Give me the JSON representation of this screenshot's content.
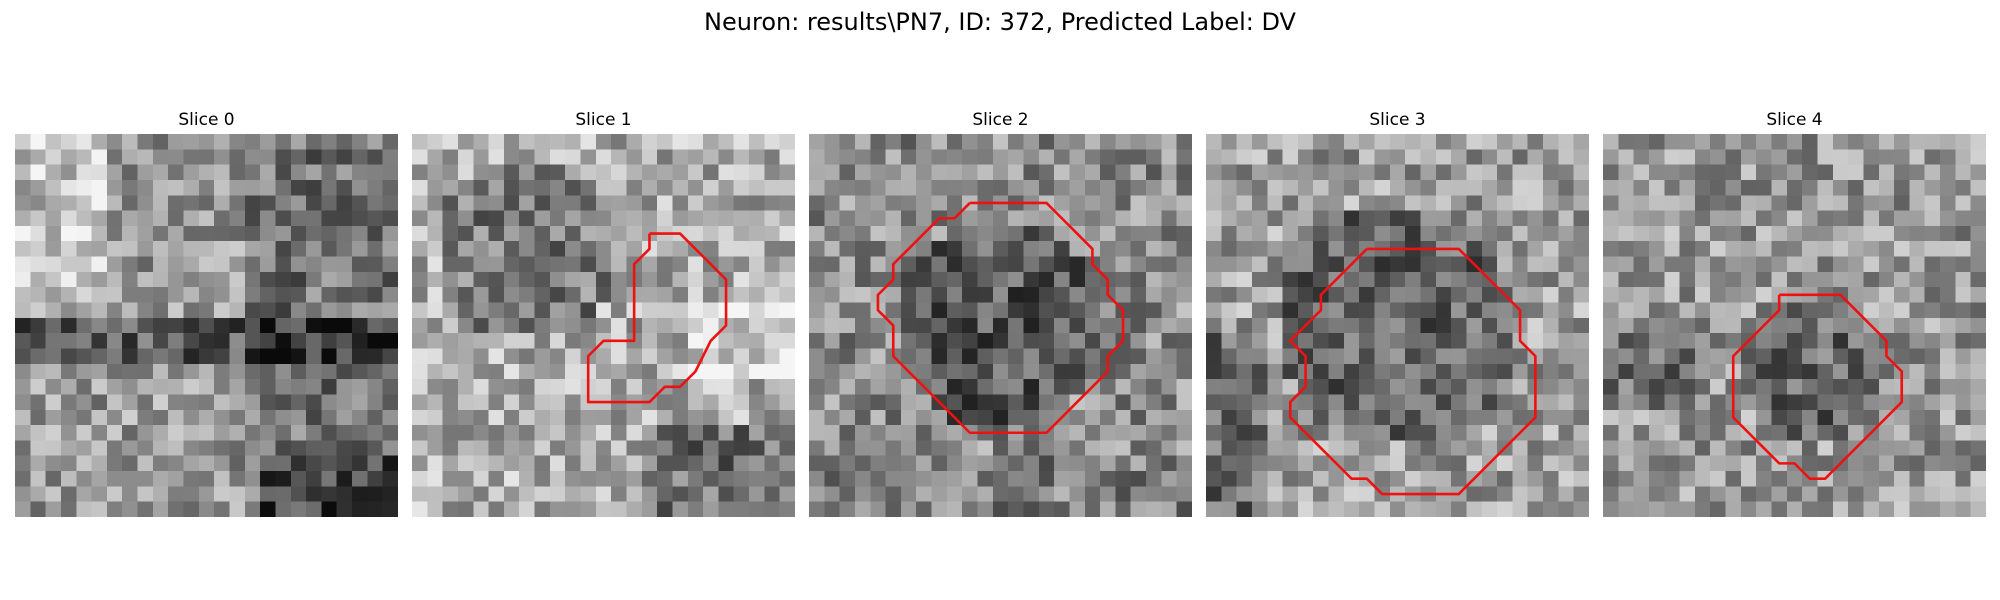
{
  "figure": {
    "title": "Neuron: results\\PN7, ID: 372, Predicted Label: DV"
  },
  "panels": [
    {
      "title": "Slice 0",
      "has_contour": false,
      "contour": []
    },
    {
      "title": "Slice 1",
      "has_contour": true,
      "contour": [
        [
          15.5,
          6.5
        ],
        [
          17.5,
          6.5
        ],
        [
          18.5,
          7.5
        ],
        [
          19.5,
          8.5
        ],
        [
          20.5,
          9.5
        ],
        [
          20.5,
          12.5
        ],
        [
          19.5,
          13.5
        ],
        [
          18.5,
          15.5
        ],
        [
          17.5,
          16.5
        ],
        [
          16.5,
          16.5
        ],
        [
          15.5,
          17.5
        ],
        [
          11.5,
          17.5
        ],
        [
          11.5,
          14.5
        ],
        [
          12.5,
          13.5
        ],
        [
          14.5,
          13.5
        ],
        [
          14.5,
          8.5
        ],
        [
          15.5,
          7.5
        ],
        [
          15.5,
          6.5
        ]
      ]
    },
    {
      "title": "Slice 2",
      "has_contour": true,
      "contour": [
        [
          10.5,
          4.5
        ],
        [
          15.5,
          4.5
        ],
        [
          16.5,
          5.5
        ],
        [
          17.5,
          6.5
        ],
        [
          18.5,
          7.5
        ],
        [
          18.5,
          8.5
        ],
        [
          19.5,
          9.5
        ],
        [
          19.5,
          10.5
        ],
        [
          20.5,
          11.5
        ],
        [
          20.5,
          13.5
        ],
        [
          19.5,
          14.5
        ],
        [
          19.5,
          15.5
        ],
        [
          18.5,
          16.5
        ],
        [
          17.5,
          17.5
        ],
        [
          16.5,
          18.5
        ],
        [
          15.5,
          19.5
        ],
        [
          10.5,
          19.5
        ],
        [
          9.5,
          18.5
        ],
        [
          8.5,
          17.5
        ],
        [
          7.5,
          16.5
        ],
        [
          6.5,
          15.5
        ],
        [
          5.5,
          14.5
        ],
        [
          5.5,
          12.5
        ],
        [
          4.5,
          11.5
        ],
        [
          4.5,
          10.5
        ],
        [
          5.5,
          9.5
        ],
        [
          5.5,
          8.5
        ],
        [
          6.5,
          7.5
        ],
        [
          7.5,
          6.5
        ],
        [
          8.5,
          5.5
        ],
        [
          9.5,
          5.5
        ],
        [
          10.5,
          4.5
        ]
      ]
    },
    {
      "title": "Slice 3",
      "has_contour": true,
      "contour": [
        [
          10.5,
          7.5
        ],
        [
          16.5,
          7.5
        ],
        [
          17.5,
          8.5
        ],
        [
          18.5,
          9.5
        ],
        [
          19.5,
          10.5
        ],
        [
          20.5,
          11.5
        ],
        [
          20.5,
          13.5
        ],
        [
          21.5,
          14.5
        ],
        [
          21.5,
          18.5
        ],
        [
          20.5,
          19.5
        ],
        [
          19.5,
          20.5
        ],
        [
          18.5,
          21.5
        ],
        [
          17.5,
          22.5
        ],
        [
          16.5,
          23.5
        ],
        [
          11.5,
          23.5
        ],
        [
          10.5,
          22.5
        ],
        [
          9.5,
          22.5
        ],
        [
          8.5,
          21.5
        ],
        [
          7.5,
          20.5
        ],
        [
          6.5,
          19.5
        ],
        [
          5.5,
          18.5
        ],
        [
          5.5,
          17.5
        ],
        [
          6.5,
          16.5
        ],
        [
          6.5,
          14.5
        ],
        [
          5.5,
          13.5
        ],
        [
          6.5,
          12.5
        ],
        [
          7.5,
          11.5
        ],
        [
          7.5,
          10.5
        ],
        [
          8.5,
          9.5
        ],
        [
          9.5,
          8.5
        ],
        [
          10.5,
          7.5
        ]
      ]
    },
    {
      "title": "Slice 4",
      "has_contour": true,
      "contour": [
        [
          11.5,
          10.5
        ],
        [
          15.5,
          10.5
        ],
        [
          16.5,
          11.5
        ],
        [
          17.5,
          12.5
        ],
        [
          18.5,
          13.5
        ],
        [
          18.5,
          14.5
        ],
        [
          19.5,
          15.5
        ],
        [
          19.5,
          17.5
        ],
        [
          18.5,
          18.5
        ],
        [
          17.5,
          19.5
        ],
        [
          16.5,
          20.5
        ],
        [
          15.5,
          21.5
        ],
        [
          14.5,
          22.5
        ],
        [
          13.5,
          22.5
        ],
        [
          12.5,
          21.5
        ],
        [
          11.5,
          21.5
        ],
        [
          10.5,
          20.5
        ],
        [
          9.5,
          19.5
        ],
        [
          8.5,
          18.5
        ],
        [
          8.5,
          16.5
        ],
        [
          8.5,
          14.5
        ],
        [
          9.5,
          13.5
        ],
        [
          10.5,
          12.5
        ],
        [
          11.5,
          11.5
        ],
        [
          11.5,
          10.5
        ]
      ]
    }
  ],
  "colors": {
    "contour": "#ee1111"
  }
}
